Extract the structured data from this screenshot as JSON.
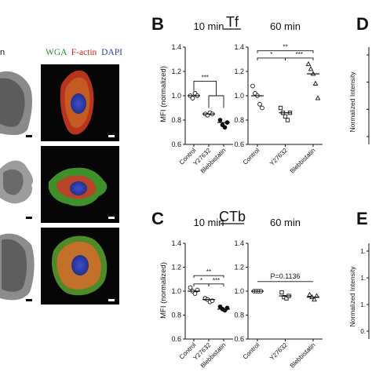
{
  "panel_letters": [
    "B",
    "C",
    "D",
    "E"
  ],
  "micrograph": {
    "left_header_fragment": "n",
    "stain_labels": [
      {
        "text": "WGA",
        "color": "#2e8b2e"
      },
      {
        "text": "F-actin",
        "color": "#d0221b"
      },
      {
        "text": "DAPI",
        "color": "#2b3fa8"
      }
    ]
  },
  "rows": [
    {
      "panel": "B",
      "marker": "Tf",
      "ylabel": "MFI (normalized)",
      "ylabel_right": "Normalized Intensity"
    },
    {
      "panel": "C",
      "marker": "CTb",
      "ylabel": "MFI (normalized)",
      "ylabel_right": "Normalized Intensity"
    }
  ],
  "chart_data": [
    {
      "panel": "B",
      "type": "scatter",
      "title": "10 min",
      "categories": [
        "Control",
        "Y27632",
        "Blebbistatin"
      ],
      "ylabel": "MFI (normalized)",
      "ylim": [
        0.6,
        1.4
      ],
      "yticks": [
        "0.6",
        "0.8",
        "1.0",
        "1.2",
        "1.4"
      ],
      "marker": "circle",
      "points": [
        [
          1.0,
          0.98,
          1.02,
          1.0
        ],
        [
          0.85,
          0.84,
          0.86,
          0.85
        ],
        [
          0.8,
          0.76,
          0.74,
          0.78
        ]
      ],
      "means": [
        1.0,
        0.85,
        0.78
      ],
      "annotations": [
        "***"
      ]
    },
    {
      "panel": "B",
      "type": "scatter",
      "title": "60 min",
      "categories": [
        "Control",
        "Y27632",
        "Blebbistatin"
      ],
      "ylabel": "",
      "ylim": [
        0.6,
        1.4
      ],
      "yticks": [
        "0.6",
        "0.8",
        "1.0",
        "1.2",
        "1.4"
      ],
      "marker": "mixed",
      "points": [
        [
          1.08,
          1.02,
          1.0,
          0.93,
          0.9
        ],
        [
          0.9,
          0.86,
          0.83,
          0.8,
          0.86
        ],
        [
          1.26,
          1.22,
          1.18,
          1.1,
          0.98
        ]
      ],
      "means": [
        1.0,
        0.86,
        1.18
      ],
      "annotations": [
        "**",
        "*",
        "***"
      ]
    },
    {
      "panel": "C",
      "type": "scatter",
      "title": "10 min",
      "categories": [
        "Control",
        "Y27632",
        "Blebbistatin"
      ],
      "ylabel": "MFI (normalized)",
      "ylim": [
        0.6,
        1.4
      ],
      "yticks": [
        "0.6",
        "0.8",
        "1.0",
        "1.2",
        "1.4"
      ],
      "marker": "circle",
      "points": [
        [
          1.03,
          1.0,
          0.98,
          1.01
        ],
        [
          0.94,
          0.93,
          0.91,
          0.92
        ],
        [
          0.87,
          0.85,
          0.84,
          0.86
        ]
      ],
      "means": [
        1.0,
        0.93,
        0.85
      ],
      "annotations": [
        "**",
        "*",
        "***"
      ]
    },
    {
      "panel": "C",
      "type": "scatter",
      "title": "60 min",
      "categories": [
        "Control",
        "Y27632",
        "Blebbistatin"
      ],
      "ylabel": "",
      "ylim": [
        0.6,
        1.4
      ],
      "yticks": [
        "0.6",
        "0.8",
        "1.0",
        "1.2",
        "1.4"
      ],
      "marker": "mixed",
      "points": [
        [
          1.0,
          1.0,
          1.0,
          1.0
        ],
        [
          0.99,
          0.95,
          0.94,
          0.96
        ],
        [
          0.97,
          0.95,
          0.93,
          0.96
        ]
      ],
      "means": [
        1.0,
        0.96,
        0.95
      ],
      "annotations": [
        "P=0.1136"
      ]
    },
    {
      "panel": "D",
      "type": "scatter",
      "title": "",
      "categories": [],
      "ylabel": "Normalized Intensity",
      "ylim": [
        null,
        null
      ],
      "yticks": [
        "",
        "",
        "",
        ""
      ],
      "points": [],
      "means": [],
      "annotations": []
    },
    {
      "panel": "E",
      "type": "scatter",
      "title": "",
      "categories": [],
      "ylabel": "Normalized Intensity",
      "ylim": [
        null,
        null
      ],
      "yticks": [
        "1.",
        "1.",
        "1.",
        "0."
      ],
      "points": [],
      "means": [],
      "annotations": []
    }
  ]
}
